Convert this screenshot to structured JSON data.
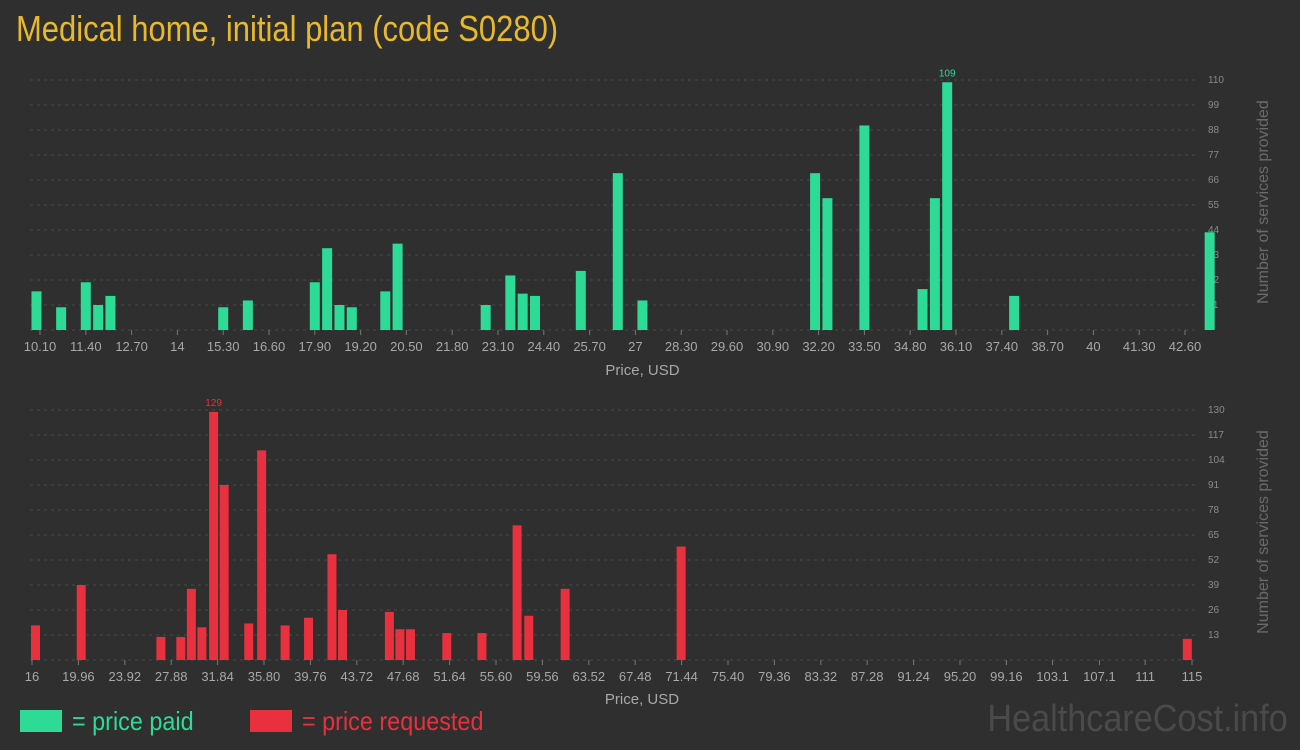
{
  "title": "Medical home, initial plan (code S0280)",
  "legend": {
    "paid_label": "= price paid",
    "requested_label": "= price requested",
    "paid_color": "#2ddb97",
    "requested_color": "#e8303e"
  },
  "watermark": "HealthcareCost.info",
  "chart_data": [
    {
      "type": "bar",
      "name": "price-paid",
      "xlabel": "Price, USD",
      "ylabel": "Number of services provided",
      "color": "#2ddb97",
      "x_range": [
        10.1,
        42.6
      ],
      "x_ticks": [
        [
          10.1,
          "10.10"
        ],
        [
          11.4,
          "11.40"
        ],
        [
          12.7,
          "12.70"
        ],
        [
          14,
          "14"
        ],
        [
          15.3,
          "15.30"
        ],
        [
          16.6,
          "16.60"
        ],
        [
          17.9,
          "17.90"
        ],
        [
          19.2,
          "19.20"
        ],
        [
          20.5,
          "20.50"
        ],
        [
          21.8,
          "21.80"
        ],
        [
          23.1,
          "23.10"
        ],
        [
          24.4,
          "24.40"
        ],
        [
          25.7,
          "25.70"
        ],
        [
          27,
          "27"
        ],
        [
          28.3,
          "28.30"
        ],
        [
          29.6,
          "29.60"
        ],
        [
          30.9,
          "30.90"
        ],
        [
          32.2,
          "32.20"
        ],
        [
          33.5,
          "33.50"
        ],
        [
          34.8,
          "34.80"
        ],
        [
          36.1,
          "36.10"
        ],
        [
          37.4,
          "37.40"
        ],
        [
          38.7,
          "38.70"
        ],
        [
          40,
          "40"
        ],
        [
          41.3,
          "41.30"
        ],
        [
          42.6,
          "42.60"
        ]
      ],
      "y_ticks": [
        11,
        22,
        33,
        44,
        55,
        66,
        77,
        88,
        99,
        110
      ],
      "ylim": [
        0,
        110
      ],
      "max_label": "109",
      "bars": [
        {
          "x": 10.0,
          "y": 17
        },
        {
          "x": 10.7,
          "y": 10
        },
        {
          "x": 11.4,
          "y": 21
        },
        {
          "x": 11.75,
          "y": 11
        },
        {
          "x": 12.1,
          "y": 15
        },
        {
          "x": 15.3,
          "y": 10
        },
        {
          "x": 16.0,
          "y": 13
        },
        {
          "x": 17.9,
          "y": 21
        },
        {
          "x": 18.25,
          "y": 36
        },
        {
          "x": 18.6,
          "y": 11
        },
        {
          "x": 18.95,
          "y": 10
        },
        {
          "x": 19.9,
          "y": 17
        },
        {
          "x": 20.25,
          "y": 38
        },
        {
          "x": 22.75,
          "y": 11
        },
        {
          "x": 23.45,
          "y": 24
        },
        {
          "x": 23.8,
          "y": 16
        },
        {
          "x": 24.15,
          "y": 15
        },
        {
          "x": 25.45,
          "y": 26
        },
        {
          "x": 26.5,
          "y": 69
        },
        {
          "x": 27.2,
          "y": 13
        },
        {
          "x": 32.1,
          "y": 69
        },
        {
          "x": 32.45,
          "y": 58
        },
        {
          "x": 33.5,
          "y": 90
        },
        {
          "x": 35.15,
          "y": 18
        },
        {
          "x": 35.5,
          "y": 58
        },
        {
          "x": 35.85,
          "y": 109
        },
        {
          "x": 37.75,
          "y": 15
        },
        {
          "x": 43.3,
          "y": 43
        }
      ]
    },
    {
      "type": "bar",
      "name": "price-requested",
      "xlabel": "Price, USD",
      "ylabel": "Number of services provided",
      "color": "#e8303e",
      "x_range": [
        16,
        115
      ],
      "x_ticks": [
        [
          16,
          "16"
        ],
        [
          19.96,
          "19.96"
        ],
        [
          23.92,
          "23.92"
        ],
        [
          27.88,
          "27.88"
        ],
        [
          31.84,
          "31.84"
        ],
        [
          35.8,
          "35.80"
        ],
        [
          39.76,
          "39.76"
        ],
        [
          43.72,
          "43.72"
        ],
        [
          47.68,
          "47.68"
        ],
        [
          51.64,
          "51.64"
        ],
        [
          55.6,
          "55.60"
        ],
        [
          59.56,
          "59.56"
        ],
        [
          63.52,
          "63.52"
        ],
        [
          67.48,
          "67.48"
        ],
        [
          71.44,
          "71.44"
        ],
        [
          75.4,
          "75.40"
        ],
        [
          79.36,
          "79.36"
        ],
        [
          83.32,
          "83.32"
        ],
        [
          87.28,
          "87.28"
        ],
        [
          91.24,
          "91.24"
        ],
        [
          95.2,
          "95.20"
        ],
        [
          99.16,
          "99.16"
        ],
        [
          103.1,
          "103.1"
        ],
        [
          107.1,
          "107.1"
        ],
        [
          111,
          "111"
        ],
        [
          115,
          "115"
        ]
      ],
      "y_ticks": [
        13,
        26,
        39,
        52,
        65,
        78,
        91,
        104,
        117,
        130
      ],
      "ylim": [
        0,
        130
      ],
      "max_label": "129",
      "bars": [
        {
          "x": 16.3,
          "y": 18
        },
        {
          "x": 20.2,
          "y": 39
        },
        {
          "x": 27.0,
          "y": 12
        },
        {
          "x": 28.7,
          "y": 12
        },
        {
          "x": 29.6,
          "y": 37
        },
        {
          "x": 30.5,
          "y": 17
        },
        {
          "x": 31.5,
          "y": 129
        },
        {
          "x": 32.4,
          "y": 91
        },
        {
          "x": 34.5,
          "y": 19
        },
        {
          "x": 35.6,
          "y": 109
        },
        {
          "x": 37.6,
          "y": 18
        },
        {
          "x": 39.6,
          "y": 22
        },
        {
          "x": 41.6,
          "y": 55
        },
        {
          "x": 42.5,
          "y": 26
        },
        {
          "x": 46.5,
          "y": 25
        },
        {
          "x": 47.4,
          "y": 16
        },
        {
          "x": 48.3,
          "y": 16
        },
        {
          "x": 51.4,
          "y": 14
        },
        {
          "x": 54.4,
          "y": 14
        },
        {
          "x": 57.4,
          "y": 70
        },
        {
          "x": 58.4,
          "y": 23
        },
        {
          "x": 61.5,
          "y": 37
        },
        {
          "x": 71.4,
          "y": 59
        },
        {
          "x": 114.6,
          "y": 11
        }
      ]
    }
  ]
}
